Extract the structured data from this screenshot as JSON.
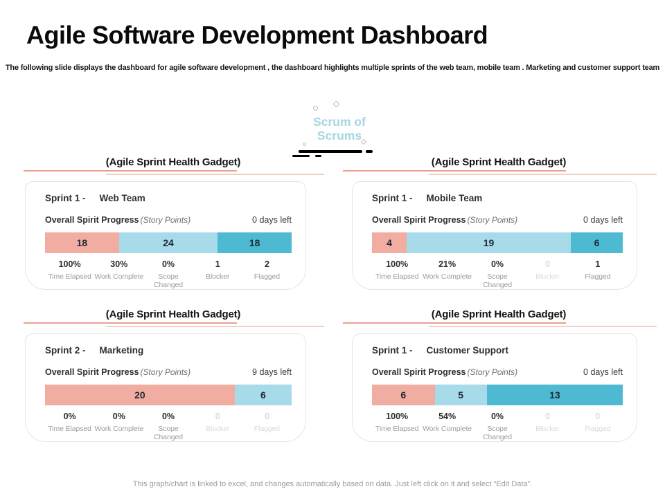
{
  "slide": {
    "title": "Agile Software Development Dashboard",
    "subtitle": "The following slide displays the dashboard for agile software development , the dashboard highlights multiple sprints of the web team, mobile team . Marketing and customer support team",
    "footer": "This graph/chart is linked to excel, and changes automatically based on data. Just left click on it and select “Edit Data”."
  },
  "scrum_badge": {
    "line1": "Scrum of",
    "line2": "Scrums",
    "text_color": "#a6d6e3"
  },
  "colors": {
    "salmon": "#f2ada2",
    "light_blue": "#a7dbe9",
    "teal": "#4ebad1",
    "heading_underline": "#e9a092",
    "heading_underline_light": "#f2cfc5",
    "faded_text": "#dadada"
  },
  "gadgets": [
    {
      "heading": "(Agile Sprint Health Gadget)",
      "sprint_label": "Sprint 1 -",
      "team": "Web Team",
      "progress_label": "Overall Spirit Progress",
      "progress_note": "(Story Points)",
      "days_left": "0 days left",
      "segments": [
        {
          "value": 18,
          "color": "#f2ada2"
        },
        {
          "value": 24,
          "color": "#a7dbe9"
        },
        {
          "value": 18,
          "color": "#4ebad1"
        }
      ],
      "stats": [
        {
          "value": "100%",
          "label": "Time Elapsed",
          "faded": false
        },
        {
          "value": "30%",
          "label": "Work Complete",
          "faded": false
        },
        {
          "value": "0%",
          "label": "Scope Changed",
          "faded": false
        },
        {
          "value": "1",
          "label": "Blocker",
          "faded": false
        },
        {
          "value": "2",
          "label": "Flagged",
          "faded": false
        }
      ]
    },
    {
      "heading": "(Agile Sprint Health Gadget)",
      "sprint_label": "Sprint 1 -",
      "team": "Mobile Team",
      "progress_label": "Overall Spirit Progress",
      "progress_note": "(Story Points)",
      "days_left": "0 days left",
      "segments": [
        {
          "value": 4,
          "color": "#f2ada2"
        },
        {
          "value": 19,
          "color": "#a7dbe9"
        },
        {
          "value": 6,
          "color": "#4ebad1"
        }
      ],
      "stats": [
        {
          "value": "100%",
          "label": "Time Elapsed",
          "faded": false
        },
        {
          "value": "21%",
          "label": "Work Complete",
          "faded": false
        },
        {
          "value": "0%",
          "label": "Scope Changed",
          "faded": false
        },
        {
          "value": "0",
          "label": "Blocker",
          "faded": true
        },
        {
          "value": "1",
          "label": "Flagged",
          "faded": false
        }
      ]
    },
    {
      "heading": "(Agile Sprint Health Gadget)",
      "sprint_label": "Sprint 2 -",
      "team": "Marketing",
      "progress_label": "Overall Spirit Progress",
      "progress_note": "(Story Points)",
      "days_left": "9 days left",
      "segments": [
        {
          "value": 20,
          "color": "#f2ada2"
        },
        {
          "value": 6,
          "color": "#a7dbe9"
        }
      ],
      "stats": [
        {
          "value": "0%",
          "label": "Time Elapsed",
          "faded": false
        },
        {
          "value": "0%",
          "label": "Work Complete",
          "faded": false
        },
        {
          "value": "0%",
          "label": "Scope Changed",
          "faded": false
        },
        {
          "value": "0",
          "label": "Blocker",
          "faded": true
        },
        {
          "value": "0",
          "label": "Flagged",
          "faded": true
        }
      ]
    },
    {
      "heading": "(Agile Sprint Health Gadget)",
      "sprint_label": "Sprint 1 -",
      "team": "Customer Support",
      "progress_label": "Overall Spirit Progress",
      "progress_note": "(Story Points)",
      "days_left": "0 days left",
      "segments": [
        {
          "value": 6,
          "color": "#f2ada2"
        },
        {
          "value": 5,
          "color": "#a7dbe9"
        },
        {
          "value": 13,
          "color": "#4ebad1"
        }
      ],
      "stats": [
        {
          "value": "100%",
          "label": "Time Elapsed",
          "faded": false
        },
        {
          "value": "54%",
          "label": "Work Complete",
          "faded": false
        },
        {
          "value": "0%",
          "label": "Scope Changed",
          "faded": false
        },
        {
          "value": "0",
          "label": "Blocker",
          "faded": true
        },
        {
          "value": "0",
          "label": "Flagged",
          "faded": true
        }
      ]
    }
  ],
  "chart_data": [
    {
      "type": "bar",
      "stacked": true,
      "title": "Sprint 1 - Web Team",
      "xlabel": "Story Points",
      "values": [
        18,
        24,
        18
      ],
      "colors": [
        "#f2ada2",
        "#a7dbe9",
        "#4ebad1"
      ],
      "total": 60,
      "days_left": "0 days left",
      "stats": {
        "Time Elapsed": "100%",
        "Work Complete": "30%",
        "Scope Changed": "0%",
        "Blocker": "1",
        "Flagged": "2"
      }
    },
    {
      "type": "bar",
      "stacked": true,
      "title": "Sprint 1 - Mobile Team",
      "xlabel": "Story Points",
      "values": [
        4,
        19,
        6
      ],
      "colors": [
        "#f2ada2",
        "#a7dbe9",
        "#4ebad1"
      ],
      "total": 29,
      "days_left": "0 days left",
      "stats": {
        "Time Elapsed": "100%",
        "Work Complete": "21%",
        "Scope Changed": "0%",
        "Blocker": "0",
        "Flagged": "1"
      }
    },
    {
      "type": "bar",
      "stacked": true,
      "title": "Sprint 2 - Marketing",
      "xlabel": "Story Points",
      "values": [
        20,
        6
      ],
      "colors": [
        "#f2ada2",
        "#a7dbe9"
      ],
      "total": 26,
      "days_left": "9 days left",
      "stats": {
        "Time Elapsed": "0%",
        "Work Complete": "0%",
        "Scope Changed": "0%",
        "Blocker": "0",
        "Flagged": "0"
      }
    },
    {
      "type": "bar",
      "stacked": true,
      "title": "Sprint 1 - Customer Support",
      "xlabel": "Story Points",
      "values": [
        6,
        5,
        13
      ],
      "colors": [
        "#f2ada2",
        "#a7dbe9",
        "#4ebad1"
      ],
      "total": 24,
      "days_left": "0 days left",
      "stats": {
        "Time Elapsed": "100%",
        "Work Complete": "54%",
        "Scope Changed": "0%",
        "Blocker": "0",
        "Flagged": "0"
      }
    }
  ]
}
